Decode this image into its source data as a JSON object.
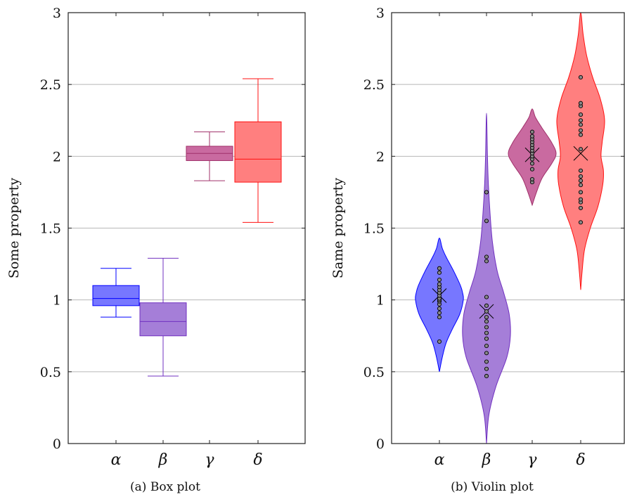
{
  "chart_data": [
    {
      "type": "box",
      "caption": "(a) Box plot",
      "ylabel": "Some property",
      "ylim": [
        0,
        3
      ],
      "yticks": [
        "0",
        "0.5",
        "1",
        "1.5",
        "2",
        "2.5",
        "3"
      ],
      "grid": "horizontal",
      "categories": [
        "α",
        "β",
        "γ",
        "δ"
      ],
      "colors": [
        "#0000ff",
        "#7030c0",
        "#a0306a",
        "#ff1010"
      ],
      "fills": [
        "#7777ff",
        "#a57ed8",
        "#c96aa0",
        "#ff7f7f"
      ],
      "boxes": [
        {
          "whisker_low": 0.88,
          "q1": 0.96,
          "median": 1.01,
          "q3": 1.1,
          "whisker_high": 1.22
        },
        {
          "whisker_low": 0.47,
          "q1": 0.75,
          "median": 0.85,
          "q3": 0.98,
          "whisker_high": 1.29
        },
        {
          "whisker_low": 1.83,
          "q1": 1.97,
          "median": 2.02,
          "q3": 2.07,
          "whisker_high": 2.17
        },
        {
          "whisker_low": 1.54,
          "q1": 1.82,
          "median": 1.98,
          "q3": 2.24,
          "whisker_high": 2.54
        }
      ]
    },
    {
      "type": "violin",
      "caption": "(b) Violin plot",
      "ylabel": "Same property",
      "ylim": [
        0,
        3
      ],
      "yticks": [
        "0",
        "0.5",
        "1",
        "1.5",
        "2",
        "2.5",
        "3"
      ],
      "grid": "horizontal",
      "categories": [
        "α",
        "β",
        "γ",
        "δ"
      ],
      "colors": [
        "#0000ff",
        "#7030c0",
        "#a0306a",
        "#ff1010"
      ],
      "fills": [
        "#7777ff",
        "#a57ed8",
        "#c96aa0",
        "#ff7f7f"
      ],
      "violins": [
        {
          "mean": 1.03,
          "profile": [
            [
              0.5,
              0
            ],
            [
              0.6,
              0.12
            ],
            [
              0.7,
              0.28
            ],
            [
              0.8,
              0.55
            ],
            [
              0.9,
              0.85
            ],
            [
              1.0,
              1.0
            ],
            [
              1.05,
              0.97
            ],
            [
              1.1,
              0.88
            ],
            [
              1.2,
              0.6
            ],
            [
              1.3,
              0.28
            ],
            [
              1.36,
              0.12
            ],
            [
              1.43,
              0
            ]
          ],
          "points": [
            0.71,
            0.88,
            0.91,
            0.94,
            0.97,
            0.99,
            1.0,
            1.01,
            1.03,
            1.05,
            1.07,
            1.09,
            1.11,
            1.14,
            1.19,
            1.22
          ]
        },
        {
          "mean": 0.92,
          "profile": [
            [
              0.0,
              0
            ],
            [
              0.2,
              0.1
            ],
            [
              0.4,
              0.4
            ],
            [
              0.6,
              0.85
            ],
            [
              0.75,
              1.0
            ],
            [
              0.9,
              0.95
            ],
            [
              1.05,
              0.72
            ],
            [
              1.2,
              0.45
            ],
            [
              1.4,
              0.25
            ],
            [
              1.6,
              0.15
            ],
            [
              1.8,
              0.08
            ],
            [
              2.0,
              0.04
            ],
            [
              2.3,
              0
            ]
          ],
          "points": [
            0.47,
            0.52,
            0.57,
            0.63,
            0.68,
            0.73,
            0.77,
            0.81,
            0.85,
            0.88,
            0.92,
            0.96,
            1.02,
            1.27,
            1.3,
            1.55,
            1.75
          ]
        },
        {
          "mean": 2.01,
          "profile": [
            [
              1.66,
              0
            ],
            [
              1.75,
              0.18
            ],
            [
              1.85,
              0.42
            ],
            [
              1.95,
              0.82
            ],
            [
              2.02,
              1.0
            ],
            [
              2.1,
              0.8
            ],
            [
              2.2,
              0.4
            ],
            [
              2.27,
              0.14
            ],
            [
              2.33,
              0
            ]
          ],
          "points": [
            1.82,
            1.84,
            1.91,
            1.95,
            1.98,
            2.0,
            2.02,
            2.04,
            2.06,
            2.08,
            2.1,
            2.12,
            2.14,
            2.17
          ]
        },
        {
          "mean": 2.02,
          "profile": [
            [
              1.07,
              0
            ],
            [
              1.2,
              0.06
            ],
            [
              1.35,
              0.16
            ],
            [
              1.5,
              0.4
            ],
            [
              1.65,
              0.72
            ],
            [
              1.8,
              0.92
            ],
            [
              1.9,
              0.95
            ],
            [
              2.0,
              0.85
            ],
            [
              2.1,
              0.9
            ],
            [
              2.25,
              1.0
            ],
            [
              2.4,
              0.82
            ],
            [
              2.55,
              0.5
            ],
            [
              2.7,
              0.25
            ],
            [
              2.85,
              0.1
            ],
            [
              3.0,
              0
            ]
          ],
          "points": [
            1.54,
            1.64,
            1.68,
            1.7,
            1.75,
            1.8,
            1.83,
            1.86,
            1.9,
            2.05,
            2.15,
            2.18,
            2.22,
            2.25,
            2.29,
            2.35,
            2.37,
            2.55
          ]
        }
      ]
    }
  ]
}
